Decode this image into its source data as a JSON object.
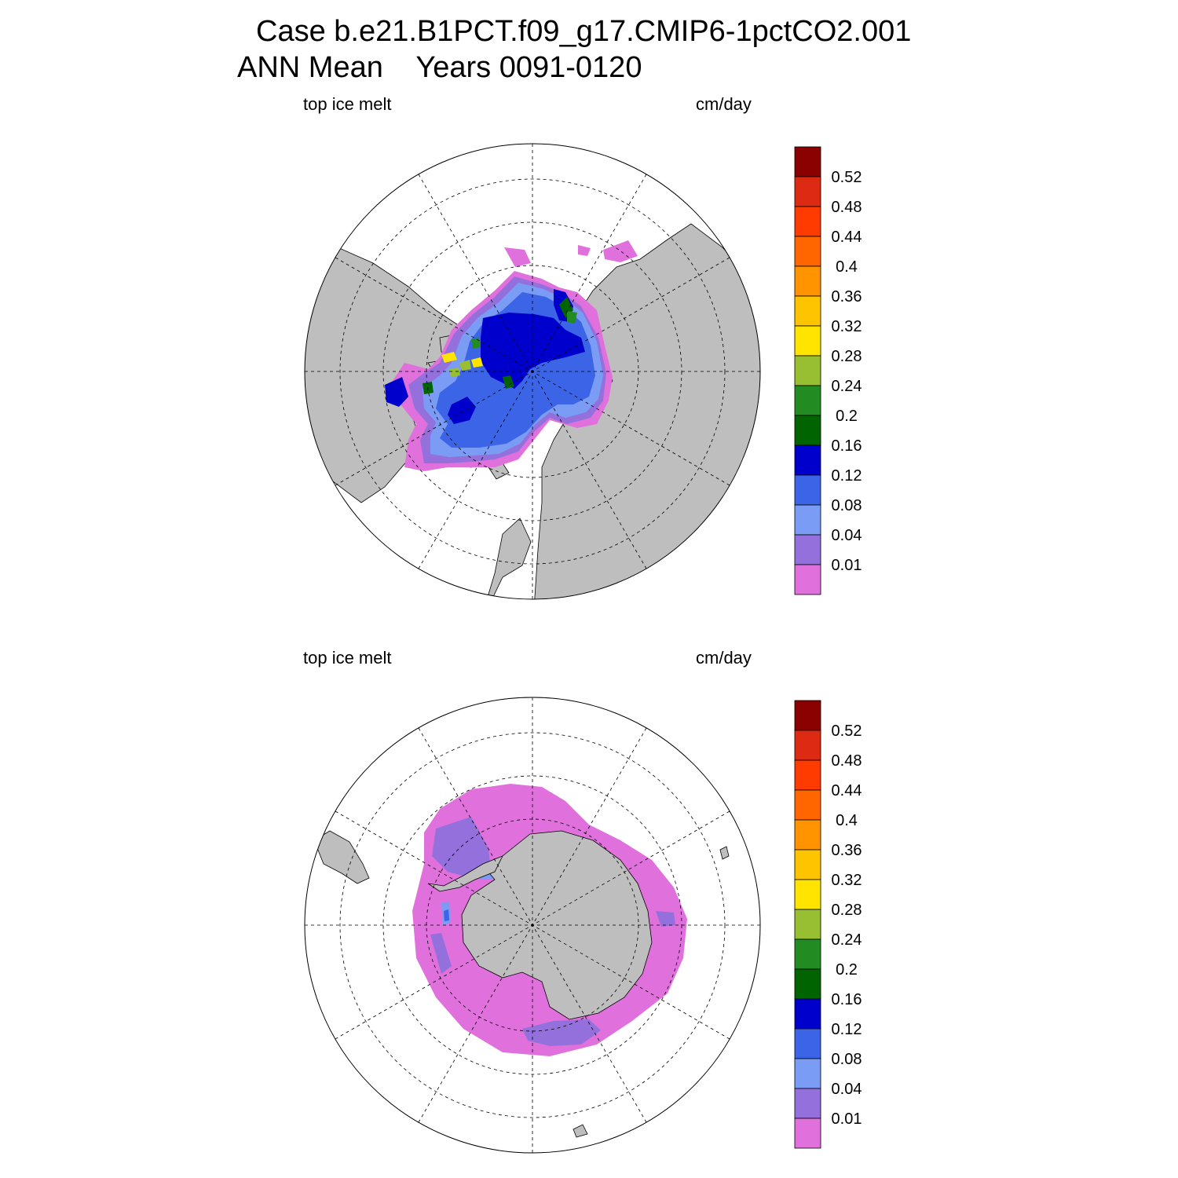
{
  "title": {
    "line1": "Case b.e21.B1PCT.f09_g17.CMIP6-1pctCO2.001",
    "line2": "ANN Mean    Years 0091-0120"
  },
  "panels": [
    {
      "hemisphere": "north",
      "variable": "top ice melt",
      "units": "cm/day"
    },
    {
      "hemisphere": "south",
      "variable": "top ice melt",
      "units": "cm/day"
    }
  ],
  "colorbar": {
    "labels": [
      "0.52",
      "0.48",
      "0.44",
      "0.4",
      "0.36",
      "0.32",
      "0.28",
      "0.24",
      "0.2",
      "0.16",
      "0.12",
      "0.08",
      "0.04",
      "0.01"
    ],
    "colors_top_to_bottom": [
      "#8b0000",
      "#dd2a12",
      "#ff3b00",
      "#ff6600",
      "#ff9400",
      "#ffc400",
      "#ffe400",
      "#98bf32",
      "#228b22",
      "#006400",
      "#0000cd",
      "#3c64e6",
      "#7a9cf5",
      "#9370db",
      "#e071dc"
    ]
  },
  "map_style": {
    "land_color": "#bebebe",
    "ocean_color": "#ffffff",
    "grid_color": "#000000"
  }
}
